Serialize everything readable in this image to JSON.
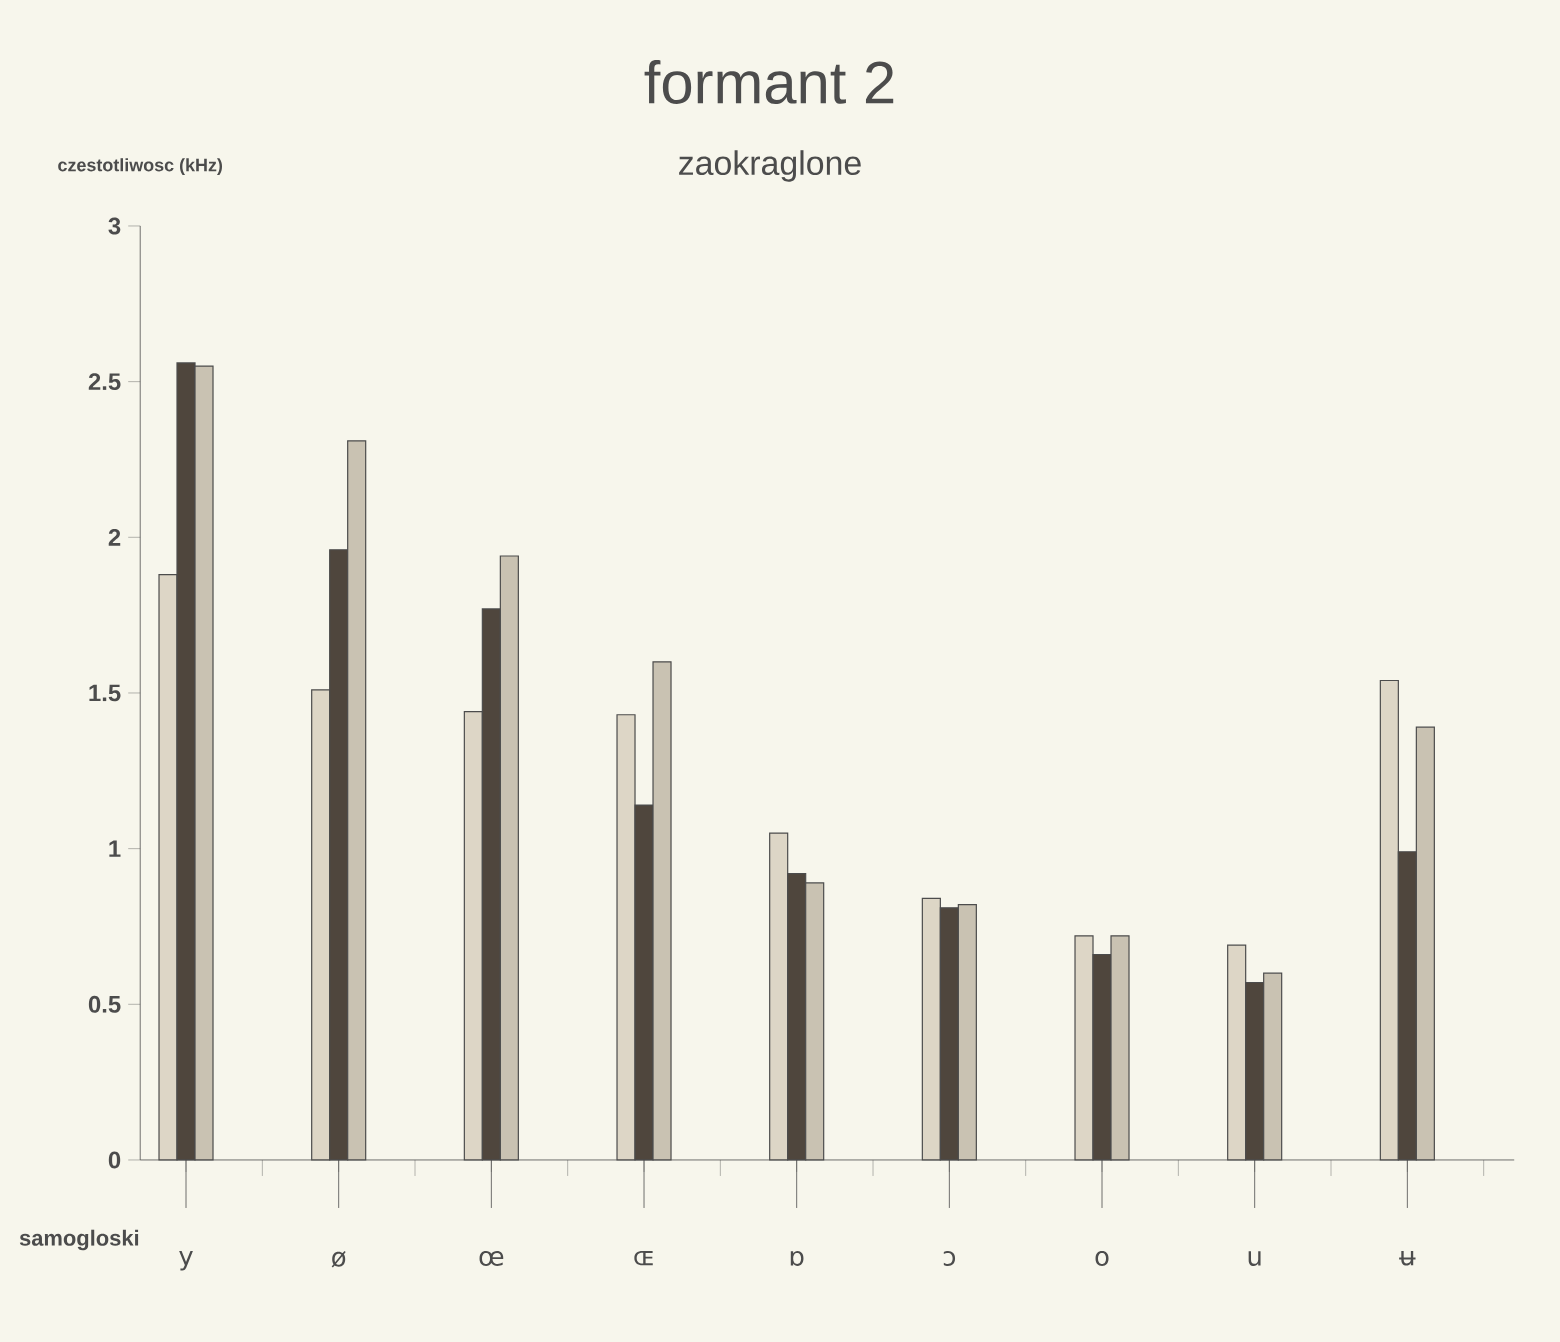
{
  "chart_data": {
    "type": "bar",
    "title": "formant 2",
    "subtitle": "zaokraglone",
    "ylabel": "czestotliwosc (kHz)",
    "xlabel": "samogloski",
    "categories": [
      "y",
      "ø",
      "œ",
      "ɶ",
      "ɒ",
      "ɔ",
      "o",
      "u",
      "ʉ"
    ],
    "series": [
      {
        "color": "#ddd6c6",
        "values": [
          1.88,
          1.51,
          1.44,
          1.43,
          1.05,
          0.84,
          0.72,
          0.69,
          1.54
        ]
      },
      {
        "color": "#4f463d",
        "values": [
          2.56,
          1.96,
          1.77,
          1.14,
          0.92,
          0.81,
          0.66,
          0.57,
          0.99
        ]
      },
      {
        "color": "#c9c2b2",
        "values": [
          2.55,
          2.31,
          1.94,
          1.6,
          0.89,
          0.82,
          0.72,
          0.6,
          1.39
        ]
      }
    ],
    "ylim": [
      0,
      3
    ],
    "yticks": [
      0,
      0.5,
      1,
      1.5,
      2,
      2.5,
      3
    ],
    "grid": false
  }
}
